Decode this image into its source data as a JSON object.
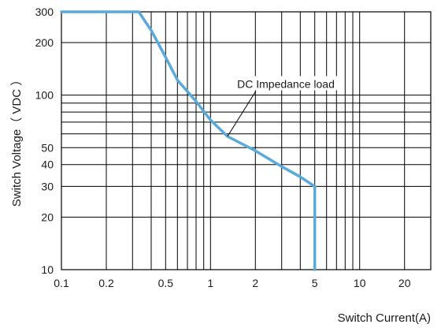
{
  "chart_data": {
    "type": "line",
    "xscale": "log",
    "yscale": "log",
    "xlim": [
      0.1,
      30
    ],
    "ylim": [
      10,
      300
    ],
    "xlabel": "Switch Current(A)",
    "ylabel": "Switch Voltage（ VDC ）",
    "x_ticks": [
      {
        "value": 0.1,
        "label": "0.1"
      },
      {
        "value": 0.2,
        "label": "0.2"
      },
      {
        "value": 0.5,
        "label": "0.5"
      },
      {
        "value": 1,
        "label": "1"
      },
      {
        "value": 2,
        "label": "2"
      },
      {
        "value": 5,
        "label": "5"
      },
      {
        "value": 10,
        "label": "10"
      },
      {
        "value": 20,
        "label": "20"
      }
    ],
    "y_ticks": [
      {
        "value": 10,
        "label": "10"
      },
      {
        "value": 20,
        "label": "20"
      },
      {
        "value": 30,
        "label": "30"
      },
      {
        "value": 40,
        "label": "40"
      },
      {
        "value": 50,
        "label": "50"
      },
      {
        "value": 100,
        "label": "100"
      },
      {
        "value": 200,
        "label": "200"
      },
      {
        "value": 300,
        "label": "300"
      }
    ],
    "x_grid": [
      0.2,
      0.3,
      0.4,
      0.5,
      0.6,
      0.7,
      0.8,
      0.9,
      1,
      2,
      3,
      4,
      5,
      6,
      7,
      8,
      9,
      10,
      20
    ],
    "y_grid": [
      20,
      30,
      40,
      50,
      60,
      70,
      80,
      90,
      100,
      200
    ],
    "grid": true,
    "series": [
      {
        "color": "#5aa9dc",
        "points": [
          [
            0.1,
            300
          ],
          [
            0.33,
            300
          ],
          [
            0.4,
            235
          ],
          [
            0.5,
            165
          ],
          [
            0.6,
            122
          ],
          [
            0.8,
            92
          ],
          [
            1.0,
            72
          ],
          [
            1.3,
            58
          ],
          [
            2.0,
            48
          ],
          [
            3.0,
            39
          ],
          [
            4.0,
            34
          ],
          [
            5.0,
            30
          ],
          [
            5.0,
            10
          ]
        ]
      }
    ],
    "annotations": [
      {
        "text": "DC Impedance load",
        "anchor": [
          1.3,
          58
        ],
        "label_at": [
          3.2,
          110
        ]
      }
    ]
  }
}
